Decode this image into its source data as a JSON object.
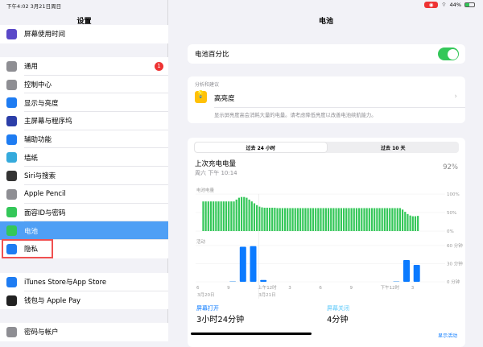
{
  "status_bar": {
    "time_date": "下午4:02   3月21日周日",
    "battery_percent": "44%"
  },
  "sidebar": {
    "title": "设置",
    "items": [
      {
        "label": "屏幕使用时间",
        "icon": "hourglass-icon",
        "color": "#5a48c8"
      },
      {
        "label": "通用",
        "icon": "gear-icon",
        "color": "#8e8e93",
        "badge": "1"
      },
      {
        "label": "控制中心",
        "icon": "switches-icon",
        "color": "#8e8e93"
      },
      {
        "label": "显示与亮度",
        "icon": "text-size-icon",
        "color": "#1e7cf2"
      },
      {
        "label": "主屏幕与程序坞",
        "icon": "grid-icon",
        "color": "#2c3ea8"
      },
      {
        "label": "辅助功能",
        "icon": "accessibility-icon",
        "color": "#1e7cf2"
      },
      {
        "label": "墙纸",
        "icon": "flower-icon",
        "color": "#35aadc"
      },
      {
        "label": "Siri与搜索",
        "icon": "siri-icon",
        "color": "#333"
      },
      {
        "label": "Apple Pencil",
        "icon": "pencil-icon",
        "color": "#8e8e93"
      },
      {
        "label": "面容ID与密码",
        "icon": "faceid-icon",
        "color": "#34c759"
      },
      {
        "label": "电池",
        "icon": "battery-icon",
        "color": "#34c759",
        "selected": true
      },
      {
        "label": "隐私",
        "icon": "hand-icon",
        "color": "#1e7cf2",
        "highlighted": true
      },
      {
        "label": "iTunes Store与App Store",
        "icon": "appstore-icon",
        "color": "#1e7cf2"
      },
      {
        "label": "钱包与 Apple Pay",
        "icon": "wallet-icon",
        "color": "#222"
      },
      {
        "label": "密码与帐户",
        "icon": "key-icon",
        "color": "#8e8e93"
      }
    ],
    "highlight_color": "#f05050"
  },
  "main": {
    "title": "电池",
    "battery_percentage_label": "电池百分比",
    "battery_percentage_on": true,
    "insights_header": "分析和建议",
    "insight_title": "高亮度",
    "insight_text": "显示屏亮度高会消耗大量的电量。请考虑降低亮度以改善电池续航能力。",
    "tabs": [
      "过去 24 小时",
      "过去 10 天"
    ],
    "last_charge_label": "上次充电电量",
    "last_charge_time": "周六 下午 10:14",
    "last_charge_value": "92%",
    "screen_on_label": "屏幕打开",
    "screen_on_value": "3小时24分钟",
    "screen_off_label": "屏幕关闭",
    "screen_off_value": "4分钟",
    "show_activity": "显示活动"
  },
  "chart_data": [
    {
      "type": "bar",
      "title": "电池电量",
      "y_ticks": [
        "100%",
        "50%",
        "0%"
      ],
      "ylim": [
        0,
        100
      ],
      "values": [
        80,
        80,
        80,
        80,
        80,
        80,
        80,
        80,
        80,
        80,
        80,
        80,
        80,
        85,
        90,
        92,
        92,
        90,
        85,
        80,
        75,
        70,
        66,
        64,
        63,
        63,
        63,
        63,
        63,
        62,
        62,
        62,
        62,
        62,
        62,
        62,
        62,
        62,
        62,
        62,
        62,
        62,
        62,
        62,
        62,
        62,
        62,
        62,
        62,
        62,
        62,
        62,
        62,
        62,
        62,
        62,
        62,
        62,
        62,
        62,
        62,
        62,
        62,
        62,
        62,
        62,
        62,
        62,
        62,
        62,
        62,
        62,
        62,
        62,
        62,
        62,
        62,
        62,
        58,
        52,
        46,
        42,
        40,
        40,
        41
      ],
      "color": "#34c759"
    },
    {
      "type": "bar",
      "title": "活动",
      "y_ticks": [
        "60 分钟",
        "30 分钟",
        "0 分钟"
      ],
      "ylim": [
        0,
        60
      ],
      "values": [
        0,
        0,
        0,
        1,
        58,
        59,
        3,
        0,
        0,
        0,
        0,
        0,
        0,
        0,
        0,
        0,
        0,
        0,
        0,
        1,
        36,
        28
      ],
      "color": "#0a7aff"
    },
    {
      "x_ticks": [
        "6",
        "9",
        "上午12时",
        "3",
        "6",
        "9",
        "下午12时",
        "3"
      ],
      "x_dates": [
        "3月20日",
        "3月21日"
      ]
    }
  ]
}
